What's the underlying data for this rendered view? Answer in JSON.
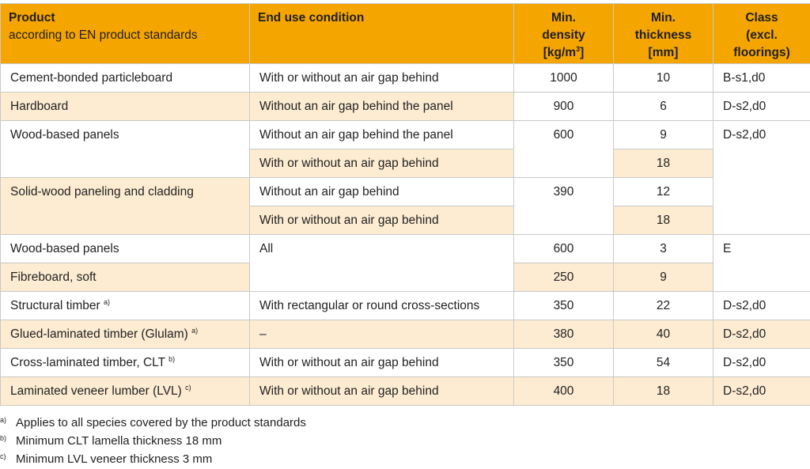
{
  "header": {
    "product": "Product",
    "product_sub": "according to EN product standards",
    "end_use": "End use condition",
    "density_l1": "Min.",
    "density_l2": "density",
    "density_l3": "[kg/m",
    "density_sup": "3",
    "density_l3b": "]",
    "thickness_l1": "Min.",
    "thickness_l2": "thickness",
    "thickness_l3": "[mm]",
    "class_l1": "Class",
    "class_l2": "(excl.",
    "class_l3": "floorings)"
  },
  "rows": {
    "r1": {
      "product": "Cement-bonded particleboard",
      "end_use": "With or without an air gap behind",
      "density": "1000",
      "thickness": "10",
      "class": "B-s1,d0"
    },
    "r2": {
      "product": "Hardboard",
      "end_use": "Without an air gap behind the panel",
      "density": "900",
      "thickness": "6",
      "class": "D-s2,d0"
    },
    "r3": {
      "product": "Wood-based panels",
      "end_use_a": "Without an air gap behind the panel",
      "end_use_b": "With or without an air gap behind",
      "density": "600",
      "thickness_a": "9",
      "thickness_b": "18",
      "class": "D-s2,d0"
    },
    "r4": {
      "product": "Solid-wood paneling and cladding",
      "end_use_a": "Without an air gap behind",
      "end_use_b": "With or without an air gap behind",
      "density": "390",
      "thickness_a": "12",
      "thickness_b": "18"
    },
    "r5": {
      "product": "Wood-based panels",
      "end_use": "All",
      "density": "600",
      "thickness": "3",
      "class": "E"
    },
    "r6": {
      "product": "Fibreboard, soft",
      "density": "250",
      "thickness": "9"
    },
    "r7": {
      "product": "Structural timber",
      "sup": "a)",
      "end_use": "With rectangular or round cross-sections",
      "density": "350",
      "thickness": "22",
      "class": "D-s2,d0"
    },
    "r8": {
      "product": "Glued-laminated timber (Glulam)",
      "sup": "a)",
      "end_use": "–",
      "density": "380",
      "thickness": "40",
      "class": "D-s2,d0"
    },
    "r9": {
      "product": "Cross-laminated timber, CLT",
      "sup": "b)",
      "end_use": "With or without an air gap behind",
      "density": "350",
      "thickness": "54",
      "class": "D-s2,d0"
    },
    "r10": {
      "product": "Laminated veneer lumber (LVL)",
      "sup": "c)",
      "end_use": "With or without an air gap behind",
      "density": "400",
      "thickness": "18",
      "class": "D-s2,d0"
    }
  },
  "notes": [
    {
      "mark": "a)",
      "text": "Applies to all species covered by the product standards"
    },
    {
      "mark": "b)",
      "text": "Minimum CLT lamella thickness 18 mm"
    },
    {
      "mark": "c)",
      "text": "Minimum LVL veneer thickness 3 mm"
    }
  ],
  "colors": {
    "header_bg": "#f5a500",
    "shade_bg": "#fdecd2",
    "border": "#c9c9c9"
  }
}
